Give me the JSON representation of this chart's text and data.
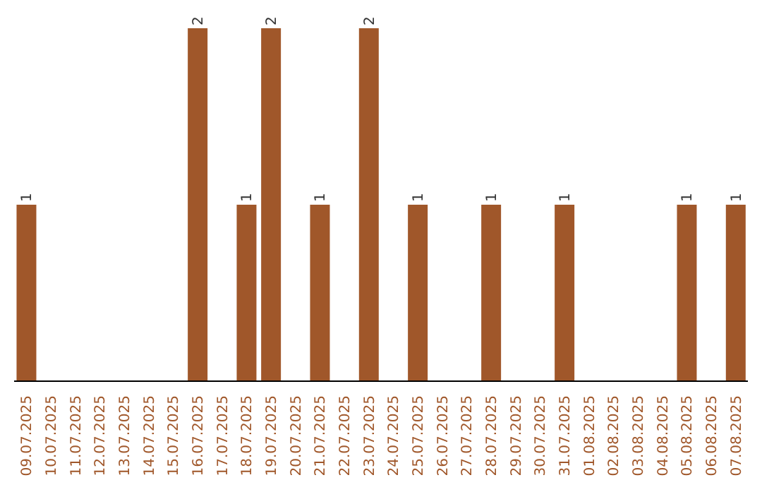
{
  "chart_data": {
    "type": "bar",
    "categories": [
      "09.07.2025",
      "10.07.2025",
      "11.07.2025",
      "12.07.2025",
      "13.07.2025",
      "14.07.2025",
      "15.07.2025",
      "16.07.2025",
      "17.07.2025",
      "18.07.2025",
      "19.07.2025",
      "20.07.2025",
      "21.07.2025",
      "22.07.2025",
      "23.07.2025",
      "24.07.2025",
      "25.07.2025",
      "26.07.2025",
      "27.07.2025",
      "28.07.2025",
      "29.07.2025",
      "30.07.2025",
      "31.07.2025",
      "01.08.2025",
      "02.08.2025",
      "03.08.2025",
      "04.08.2025",
      "05.08.2025",
      "06.08.2025",
      "07.08.2025"
    ],
    "values": [
      1,
      0,
      0,
      0,
      0,
      0,
      0,
      2,
      0,
      1,
      2,
      0,
      1,
      0,
      2,
      0,
      1,
      0,
      0,
      1,
      0,
      0,
      1,
      0,
      0,
      0,
      0,
      1,
      0,
      1
    ],
    "value_labels": [
      "1",
      null,
      null,
      null,
      null,
      null,
      null,
      "2",
      null,
      "1",
      "2",
      null,
      "1",
      null,
      "2",
      null,
      "1",
      null,
      null,
      "1",
      null,
      null,
      "1",
      null,
      null,
      null,
      null,
      "1",
      null,
      "1"
    ],
    "color": "#a0572a",
    "ylim": [
      0,
      2
    ],
    "tick_labels": "x"
  }
}
